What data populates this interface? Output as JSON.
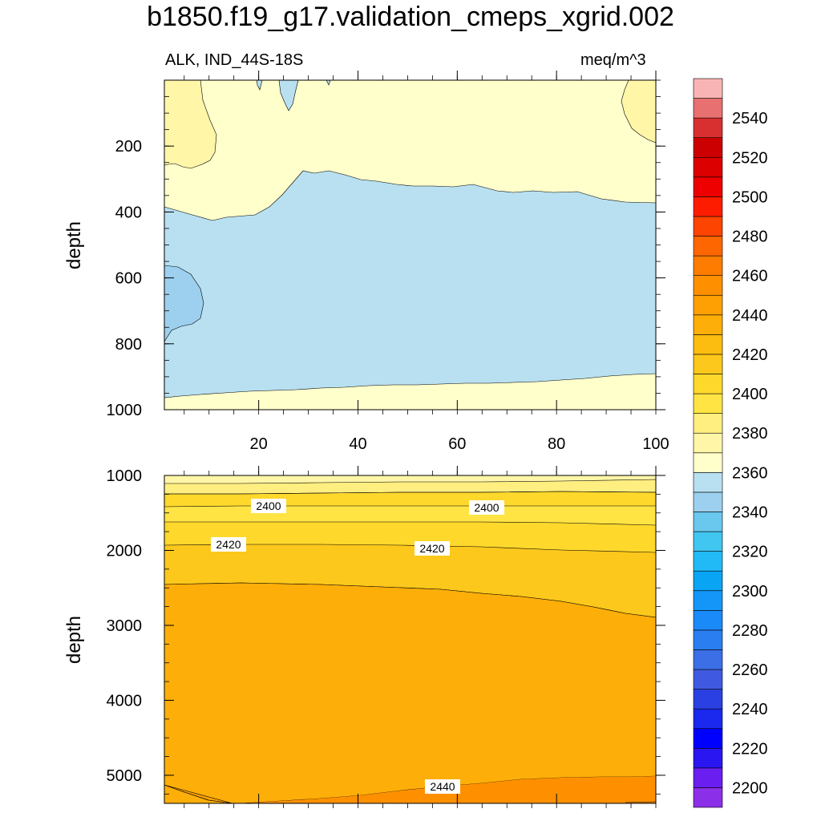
{
  "chart_data": {
    "type": "contour",
    "title": "b1850.f19_g17.validation_cmeps_xgrid.002",
    "subtitle_left": "ALK, IND_44S-18S",
    "subtitle_right": "meq/m^3",
    "xlim": [
      1,
      100
    ],
    "x_ticks": [
      20,
      40,
      60,
      80,
      100
    ],
    "colorbar": {
      "levels": [
        2200,
        2210,
        2220,
        2230,
        2240,
        2250,
        2260,
        2270,
        2280,
        2290,
        2300,
        2310,
        2320,
        2330,
        2340,
        2350,
        2360,
        2370,
        2380,
        2390,
        2400,
        2410,
        2420,
        2430,
        2440,
        2450,
        2460,
        2470,
        2480,
        2490,
        2500,
        2510,
        2520,
        2530,
        2540,
        2550
      ],
      "labels": [
        "2200",
        "2220",
        "2240",
        "2260",
        "2280",
        "2300",
        "2320",
        "2340",
        "2360",
        "2380",
        "2400",
        "2420",
        "2440",
        "2460",
        "2480",
        "2500",
        "2520",
        "2540"
      ],
      "colors": [
        "#8c2fe8",
        "#6a1ef0",
        "#2a16f0",
        "#0000ff",
        "#1b28ee",
        "#2a40e2",
        "#3f5ae0",
        "#3c6ee6",
        "#2a7ef0",
        "#1a8af8",
        "#1496f8",
        "#0aa4f4",
        "#22baf6",
        "#40c6f0",
        "#6ac8ee",
        "#9cd0ee",
        "#b8e0f0",
        "#ffffcc",
        "#fff6a8",
        "#ffee80",
        "#ffe444",
        "#ffd82c",
        "#fdc81c",
        "#fcbc10",
        "#fdae08",
        "#fea004",
        "#fe9000",
        "#fe7c00",
        "#fd6600",
        "#fd4400",
        "#fe1c00",
        "#ee0000",
        "#dc0000",
        "#cc0000",
        "#d83030",
        "#e87070",
        "#f8b4b4"
      ]
    },
    "panels": [
      {
        "name": "upper",
        "ylabel": "depth",
        "ylim": [
          0,
          1000
        ],
        "y_ticks": [
          200,
          400,
          600,
          800,
          1000
        ],
        "regions": [
          {
            "level_range": [
              2370,
              2380
            ],
            "desc": "background"
          },
          {
            "level_range": [
              2360,
              2370
            ],
            "desc": "band approx 300-950 m"
          },
          {
            "level_range": [
              2350,
              2360
            ],
            "desc": "patch near x=1-10, 580-790 m"
          },
          {
            "level_range": [
              2380,
              2390
            ],
            "desc": "patches near surface at x=1-12 and x=93-100"
          },
          {
            "level_range": [
              2360,
              2370
            ],
            "desc": "small patch near surface at x=24-28"
          }
        ],
        "contour_labels": []
      },
      {
        "name": "lower",
        "ylabel": "depth",
        "ylim": [
          1000,
          5375
        ],
        "y_ticks": [
          1000,
          2000,
          3000,
          4000,
          5000
        ],
        "regions": [
          {
            "level_range": [
              2380,
              2390
            ],
            "desc": "near 1000-1100 m"
          },
          {
            "level_range": [
              2390,
              2400
            ],
            "desc": "approx 1100-1400 m"
          },
          {
            "level_range": [
              2400,
              2410
            ],
            "desc": "approx 1400-1650 m"
          },
          {
            "level_range": [
              2410,
              2420
            ],
            "desc": "approx 1650-1950 m"
          },
          {
            "level_range": [
              2420,
              2430
            ],
            "desc": "approx 1950-2450 m"
          },
          {
            "level_range": [
              2430,
              2440
            ],
            "desc": "approx 2450-5100 m"
          },
          {
            "level_range": [
              2440,
              2450
            ],
            "desc": "bottom below approx 5050 m"
          }
        ],
        "contour_labels": [
          "2400",
          "2400",
          "2420",
          "2420",
          "2440"
        ]
      }
    ]
  }
}
